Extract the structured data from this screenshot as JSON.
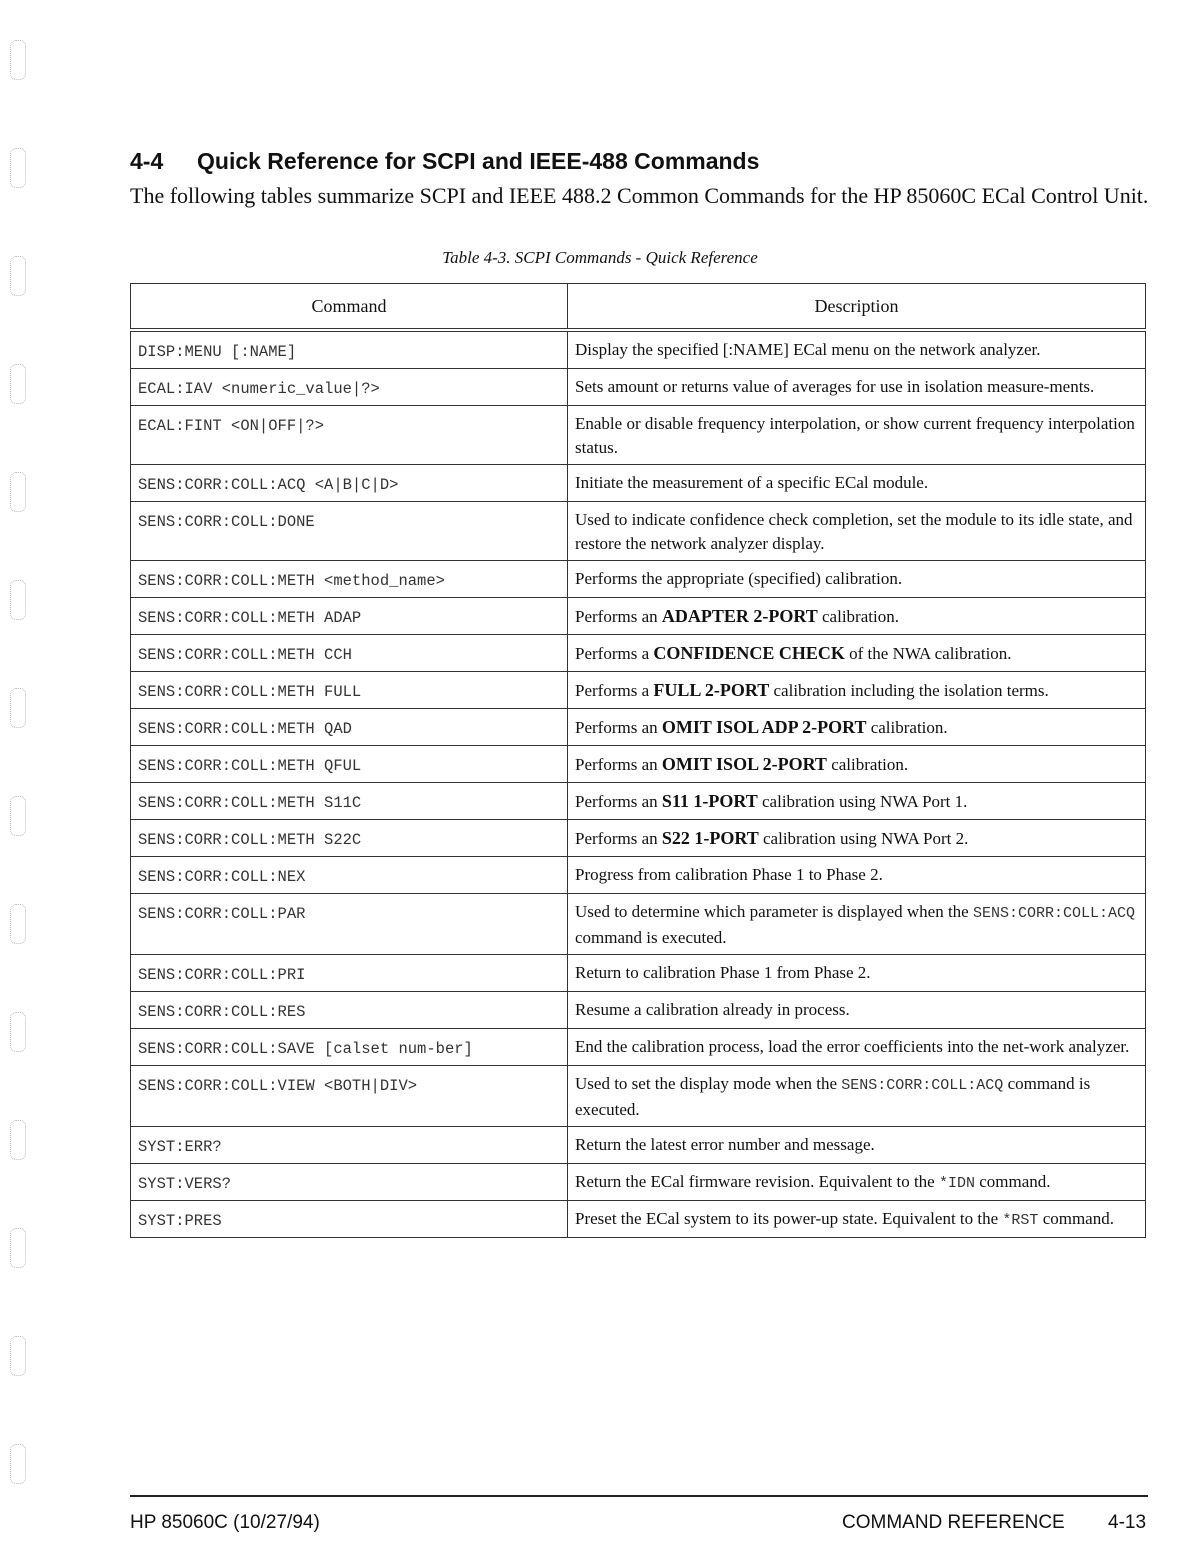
{
  "section": {
    "number": "4-4",
    "title": "Quick Reference for SCPI and IEEE-488 Commands"
  },
  "intro": "The following tables summarize SCPI and IEEE 488.2 Common Commands for the HP 85060C ECal Control Unit.",
  "caption": "Table 4-3. SCPI Commands - Quick Reference",
  "table": {
    "headers": [
      "Command",
      "Description"
    ],
    "rows": [
      {
        "cmd": "DISP:MENU [:NAME]",
        "desc": [
          {
            "t": "Display the specified [:NAME] ECal menu on the network analyzer."
          }
        ]
      },
      {
        "cmd": "ECAL:IAV <numeric_value|?>",
        "desc": [
          {
            "t": "Sets amount or returns value of averages for use in isolation measure-ments."
          }
        ]
      },
      {
        "cmd": "ECAL:FINT <ON|OFF|?>",
        "desc": [
          {
            "t": "Enable or disable frequency interpolation, or show current frequency interpolation status."
          }
        ]
      },
      {
        "cmd": "SENS:CORR:COLL:ACQ <A|B|C|D>",
        "desc": [
          {
            "t": "Initiate the measurement of a specific ECal module."
          }
        ]
      },
      {
        "cmd": "SENS:CORR:COLL:DONE",
        "desc": [
          {
            "t": "Used to indicate confidence check completion, set the module to its idle state, and restore the network analyzer display."
          }
        ]
      },
      {
        "cmd": "SENS:CORR:COLL:METH <method_name>",
        "desc": [
          {
            "t": "Performs the appropriate (specified) calibration."
          }
        ]
      },
      {
        "cmd": "SENS:CORR:COLL:METH ADAP",
        "desc": [
          {
            "t": "Performs an "
          },
          {
            "t": "ADAPTER 2-PORT",
            "s": "b"
          },
          {
            "t": " calibration."
          }
        ]
      },
      {
        "cmd": "SENS:CORR:COLL:METH CCH",
        "desc": [
          {
            "t": "Performs a "
          },
          {
            "t": "CONFIDENCE CHECK",
            "s": "b"
          },
          {
            "t": " of the NWA calibration."
          }
        ]
      },
      {
        "cmd": "SENS:CORR:COLL:METH FULL",
        "desc": [
          {
            "t": "Performs a "
          },
          {
            "t": "FULL 2-PORT",
            "s": "b"
          },
          {
            "t": " calibration including the isolation terms."
          }
        ]
      },
      {
        "cmd": "SENS:CORR:COLL:METH QAD",
        "desc": [
          {
            "t": "Performs an "
          },
          {
            "t": "OMIT ISOL ADP 2-PORT",
            "s": "b"
          },
          {
            "t": " calibration."
          }
        ]
      },
      {
        "cmd": "SENS:CORR:COLL:METH QFUL",
        "desc": [
          {
            "t": "Performs an "
          },
          {
            "t": "OMIT ISOL 2-PORT",
            "s": "b"
          },
          {
            "t": " calibration."
          }
        ]
      },
      {
        "cmd": "SENS:CORR:COLL:METH S11C",
        "desc": [
          {
            "t": "Performs an "
          },
          {
            "t": "S11 1-PORT",
            "s": "b"
          },
          {
            "t": " calibration using NWA Port 1."
          }
        ]
      },
      {
        "cmd": "SENS:CORR:COLL:METH S22C",
        "desc": [
          {
            "t": "Performs an "
          },
          {
            "t": "S22 1-PORT",
            "s": "b"
          },
          {
            "t": " calibration using NWA Port 2."
          }
        ]
      },
      {
        "cmd": "SENS:CORR:COLL:NEX",
        "desc": [
          {
            "t": "Progress from calibration Phase 1 to Phase 2."
          }
        ]
      },
      {
        "cmd": "SENS:CORR:COLL:PAR",
        "desc": [
          {
            "t": "Used to determine which parameter is displayed when the "
          },
          {
            "t": "SENS:CORR:COLL:ACQ",
            "s": "m"
          },
          {
            "t": " command is executed."
          }
        ]
      },
      {
        "cmd": "SENS:CORR:COLL:PRI",
        "desc": [
          {
            "t": "Return to calibration Phase 1 from Phase 2."
          }
        ]
      },
      {
        "cmd": "SENS:CORR:COLL:RES",
        "desc": [
          {
            "t": "Resume a calibration already in process."
          }
        ]
      },
      {
        "cmd": "SENS:CORR:COLL:SAVE [calset num-ber]",
        "desc": [
          {
            "t": "End the calibration process, load the error coefficients into the net-work analyzer."
          }
        ]
      },
      {
        "cmd": "SENS:CORR:COLL:VIEW <BOTH|DIV>",
        "desc": [
          {
            "t": "Used to set the display mode when the "
          },
          {
            "t": "SENS:CORR:COLL:ACQ",
            "s": "m"
          },
          {
            "t": " command is executed."
          }
        ]
      },
      {
        "cmd": "SYST:ERR?",
        "desc": [
          {
            "t": "Return the latest error number and message."
          }
        ]
      },
      {
        "cmd": "SYST:VERS?",
        "desc": [
          {
            "t": "Return the ECal firmware revision. Equivalent to the "
          },
          {
            "t": "*IDN",
            "s": "m"
          },
          {
            "t": " command."
          }
        ]
      },
      {
        "cmd": "SYST:PRES",
        "desc": [
          {
            "t": "Preset the ECal system to its power-up state. Equivalent to the "
          },
          {
            "t": "*RST",
            "s": "m"
          },
          {
            "t": " command."
          }
        ]
      }
    ]
  },
  "footer": {
    "left": "HP 85060C (10/27/94)",
    "section": "COMMAND REFERENCE",
    "page": "4-13"
  }
}
